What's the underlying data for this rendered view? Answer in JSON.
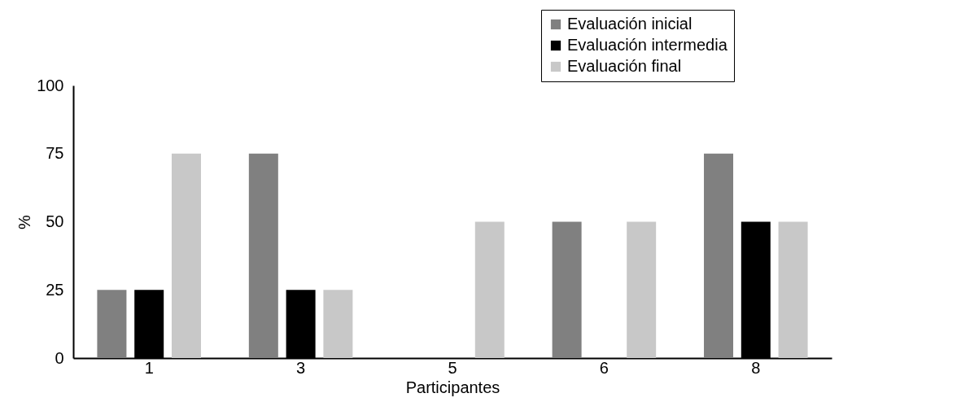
{
  "chart_data": {
    "type": "bar",
    "xlabel": "Participantes",
    "ylabel": "%",
    "categories": [
      "1",
      "3",
      "5",
      "6",
      "8"
    ],
    "series": [
      {
        "name": "Evaluación inicial",
        "color": "#808080",
        "values": [
          25,
          75,
          0,
          50,
          75
        ]
      },
      {
        "name": "Evaluación intermedia",
        "color": "#000000",
        "values": [
          25,
          25,
          0,
          0,
          50
        ]
      },
      {
        "name": "Evaluación final",
        "color": "#c8c8c8",
        "values": [
          75,
          25,
          50,
          50,
          50
        ]
      }
    ],
    "ylim": [
      0,
      100
    ],
    "yticks": [
      0,
      25,
      50,
      75,
      100
    ],
    "grid": false,
    "legend": "top right"
  }
}
